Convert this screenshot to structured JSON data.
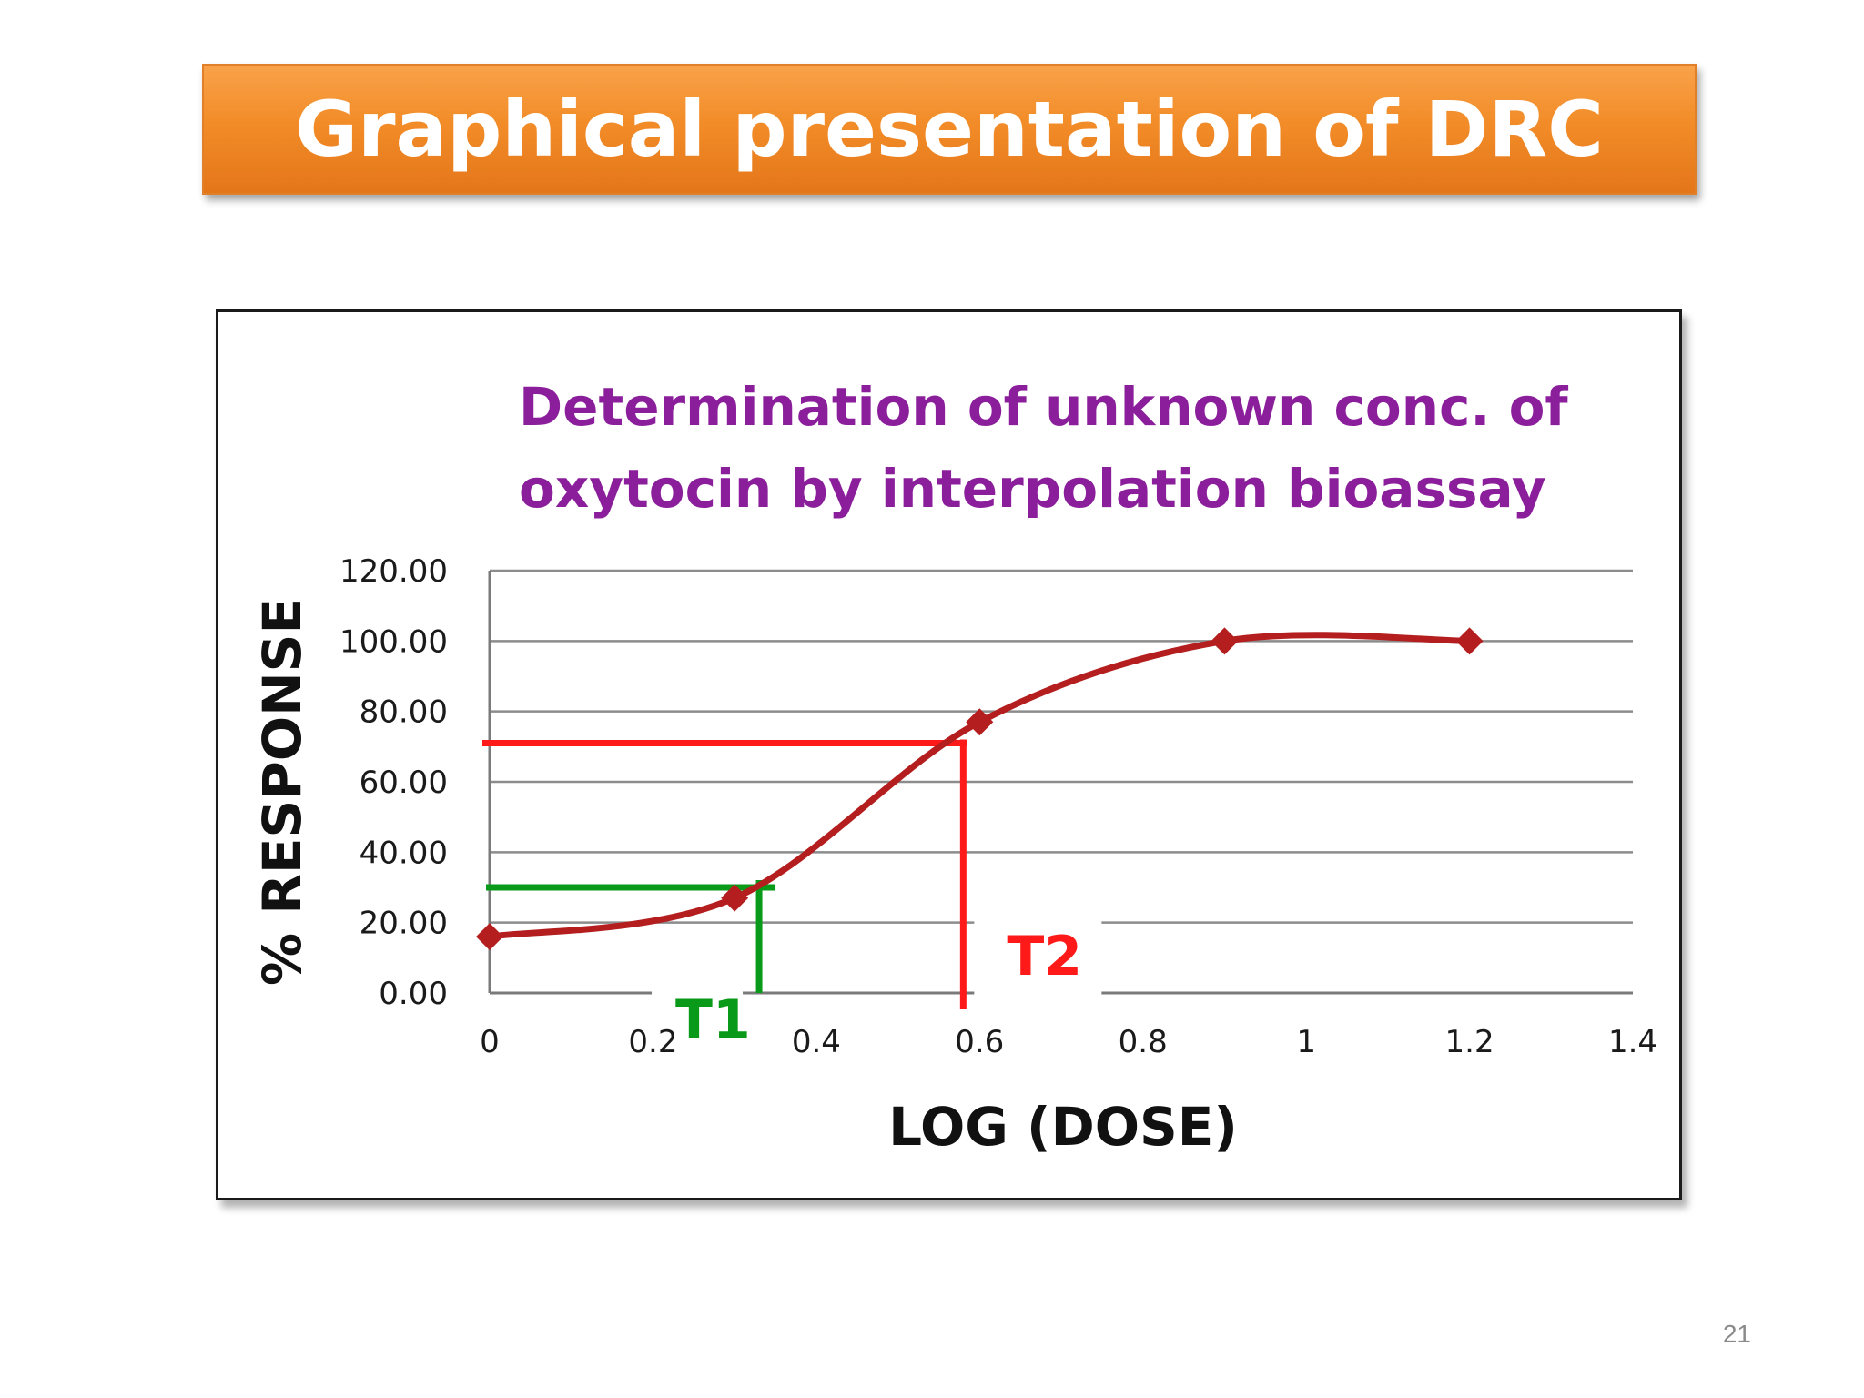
{
  "slide": {
    "title": "Graphical presentation of DRC",
    "page_number": "21"
  },
  "colors": {
    "title_bar": "#f28c28",
    "title_text": "#ffffff",
    "chart_title": "#8b1f9b",
    "curve": "#b41e1e",
    "t1_lines": "#0a9a1a",
    "t2_lines": "#ff1a1a",
    "grid": "#8c8c8c"
  },
  "chart_data": {
    "type": "line",
    "title_lines": [
      "Determination of unknown conc. of",
      "oxytocin by interpolation bioassay"
    ],
    "xlabel": "LOG (DOSE)",
    "ylabel": "% RESPONSE",
    "xlim": [
      0,
      1.4
    ],
    "ylim": [
      0,
      120
    ],
    "x_ticks": [
      0,
      0.2,
      0.4,
      0.6,
      0.8,
      1,
      1.2,
      1.4
    ],
    "x_tick_labels": [
      "0",
      "0.2",
      "0.4",
      "0.6",
      "0.8",
      "1",
      "1.2",
      "1.4"
    ],
    "y_ticks": [
      0,
      20,
      40,
      60,
      80,
      100,
      120
    ],
    "y_tick_labels": [
      "0.00",
      "20.00",
      "40.00",
      "60.00",
      "80.00",
      "100.00",
      "120.00"
    ],
    "grid": true,
    "series": [
      {
        "x": [
          0,
          0.3,
          0.6,
          0.9,
          1.2
        ],
        "y": [
          16,
          27,
          77,
          100,
          100
        ],
        "marker": "diamond",
        "smooth": true
      }
    ],
    "annotations": [
      {
        "label": "T1",
        "x": 0.33,
        "y": 30
      },
      {
        "label": "T2",
        "x": 0.58,
        "y": 71
      }
    ]
  }
}
